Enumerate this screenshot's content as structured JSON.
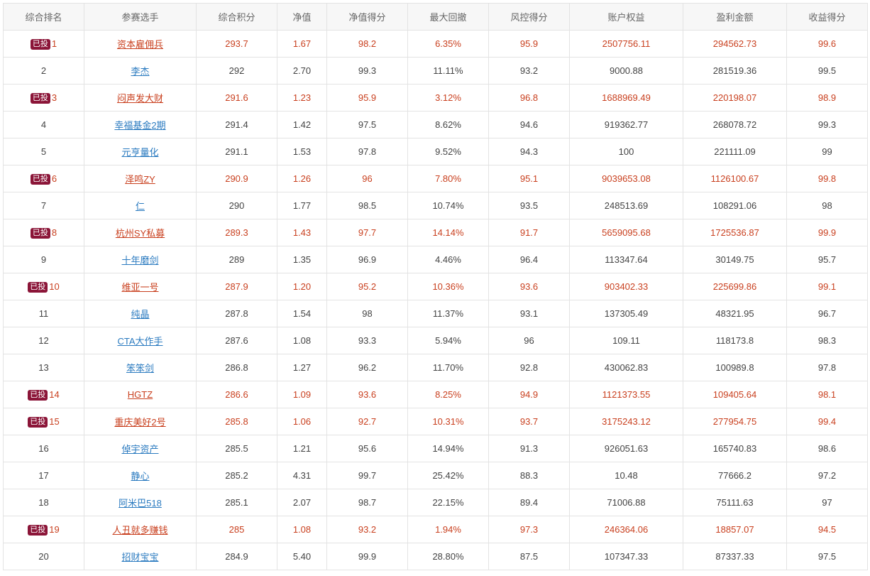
{
  "table": {
    "columns": [
      "综合排名",
      "参赛选手",
      "综合积分",
      "净值",
      "净值得分",
      "最大回撤",
      "风控得分",
      "账户权益",
      "盈利金额",
      "收益得分"
    ],
    "badge_label": "已投",
    "rows": [
      {
        "rank": "1",
        "invested": true,
        "name": "资本雇佣兵",
        "score": "293.7",
        "nav": "1.67",
        "nav_score": "98.2",
        "max_drawdown": "6.35%",
        "risk_score": "95.9",
        "equity": "2507756.11",
        "profit": "294562.73",
        "return_score": "99.6"
      },
      {
        "rank": "2",
        "invested": false,
        "name": "李杰",
        "score": "292",
        "nav": "2.70",
        "nav_score": "99.3",
        "max_drawdown": "11.11%",
        "risk_score": "93.2",
        "equity": "9000.88",
        "profit": "281519.36",
        "return_score": "99.5"
      },
      {
        "rank": "3",
        "invested": true,
        "name": "闷声发大财",
        "score": "291.6",
        "nav": "1.23",
        "nav_score": "95.9",
        "max_drawdown": "3.12%",
        "risk_score": "96.8",
        "equity": "1688969.49",
        "profit": "220198.07",
        "return_score": "98.9"
      },
      {
        "rank": "4",
        "invested": false,
        "name": "幸福基金2期",
        "score": "291.4",
        "nav": "1.42",
        "nav_score": "97.5",
        "max_drawdown": "8.62%",
        "risk_score": "94.6",
        "equity": "919362.77",
        "profit": "268078.72",
        "return_score": "99.3"
      },
      {
        "rank": "5",
        "invested": false,
        "name": "元亨量化",
        "score": "291.1",
        "nav": "1.53",
        "nav_score": "97.8",
        "max_drawdown": "9.52%",
        "risk_score": "94.3",
        "equity": "100",
        "profit": "221111.09",
        "return_score": "99"
      },
      {
        "rank": "6",
        "invested": true,
        "name": "泽鸣ZY",
        "score": "290.9",
        "nav": "1.26",
        "nav_score": "96",
        "max_drawdown": "7.80%",
        "risk_score": "95.1",
        "equity": "9039653.08",
        "profit": "1126100.67",
        "return_score": "99.8"
      },
      {
        "rank": "7",
        "invested": false,
        "name": "仁",
        "score": "290",
        "nav": "1.77",
        "nav_score": "98.5",
        "max_drawdown": "10.74%",
        "risk_score": "93.5",
        "equity": "248513.69",
        "profit": "108291.06",
        "return_score": "98"
      },
      {
        "rank": "8",
        "invested": true,
        "name": "杭州SY私募",
        "score": "289.3",
        "nav": "1.43",
        "nav_score": "97.7",
        "max_drawdown": "14.14%",
        "risk_score": "91.7",
        "equity": "5659095.68",
        "profit": "1725536.87",
        "return_score": "99.9"
      },
      {
        "rank": "9",
        "invested": false,
        "name": "十年磨剑",
        "score": "289",
        "nav": "1.35",
        "nav_score": "96.9",
        "max_drawdown": "4.46%",
        "risk_score": "96.4",
        "equity": "113347.64",
        "profit": "30149.75",
        "return_score": "95.7"
      },
      {
        "rank": "10",
        "invested": true,
        "name": "维亚一号",
        "score": "287.9",
        "nav": "1.20",
        "nav_score": "95.2",
        "max_drawdown": "10.36%",
        "risk_score": "93.6",
        "equity": "903402.33",
        "profit": "225699.86",
        "return_score": "99.1"
      },
      {
        "rank": "11",
        "invested": false,
        "name": "纯晶",
        "score": "287.8",
        "nav": "1.54",
        "nav_score": "98",
        "max_drawdown": "11.37%",
        "risk_score": "93.1",
        "equity": "137305.49",
        "profit": "48321.95",
        "return_score": "96.7"
      },
      {
        "rank": "12",
        "invested": false,
        "name": "CTA大作手",
        "score": "287.6",
        "nav": "1.08",
        "nav_score": "93.3",
        "max_drawdown": "5.94%",
        "risk_score": "96",
        "equity": "109.11",
        "profit": "118173.8",
        "return_score": "98.3"
      },
      {
        "rank": "13",
        "invested": false,
        "name": "笨笨剑",
        "score": "286.8",
        "nav": "1.27",
        "nav_score": "96.2",
        "max_drawdown": "11.70%",
        "risk_score": "92.8",
        "equity": "430062.83",
        "profit": "100989.8",
        "return_score": "97.8"
      },
      {
        "rank": "14",
        "invested": true,
        "name": "HGTZ",
        "score": "286.6",
        "nav": "1.09",
        "nav_score": "93.6",
        "max_drawdown": "8.25%",
        "risk_score": "94.9",
        "equity": "1121373.55",
        "profit": "109405.64",
        "return_score": "98.1"
      },
      {
        "rank": "15",
        "invested": true,
        "name": "重庆美好2号",
        "score": "285.8",
        "nav": "1.06",
        "nav_score": "92.7",
        "max_drawdown": "10.31%",
        "risk_score": "93.7",
        "equity": "3175243.12",
        "profit": "277954.75",
        "return_score": "99.4"
      },
      {
        "rank": "16",
        "invested": false,
        "name": "倬宇资产",
        "score": "285.5",
        "nav": "1.21",
        "nav_score": "95.6",
        "max_drawdown": "14.94%",
        "risk_score": "91.3",
        "equity": "926051.63",
        "profit": "165740.83",
        "return_score": "98.6"
      },
      {
        "rank": "17",
        "invested": false,
        "name": "静心",
        "score": "285.2",
        "nav": "4.31",
        "nav_score": "99.7",
        "max_drawdown": "25.42%",
        "risk_score": "88.3",
        "equity": "10.48",
        "profit": "77666.2",
        "return_score": "97.2"
      },
      {
        "rank": "18",
        "invested": false,
        "name": "阿米巴518",
        "score": "285.1",
        "nav": "2.07",
        "nav_score": "98.7",
        "max_drawdown": "22.15%",
        "risk_score": "89.4",
        "equity": "71006.88",
        "profit": "75111.63",
        "return_score": "97"
      },
      {
        "rank": "19",
        "invested": true,
        "name": "人丑就多赚钱",
        "score": "285",
        "nav": "1.08",
        "nav_score": "93.2",
        "max_drawdown": "1.94%",
        "risk_score": "97.3",
        "equity": "246364.06",
        "profit": "18857.07",
        "return_score": "94.5"
      },
      {
        "rank": "20",
        "invested": false,
        "name": "招财宝宝",
        "score": "284.9",
        "nav": "5.40",
        "nav_score": "99.9",
        "max_drawdown": "28.80%",
        "risk_score": "87.5",
        "equity": "107347.33",
        "profit": "87337.33",
        "return_score": "97.5"
      }
    ]
  },
  "colors": {
    "invested_text": "#c9401f",
    "link": "#2b7bc0",
    "badge_bg": "#8b1538",
    "header_bg": "#f7f7f7",
    "border": "#e3e3e3"
  }
}
